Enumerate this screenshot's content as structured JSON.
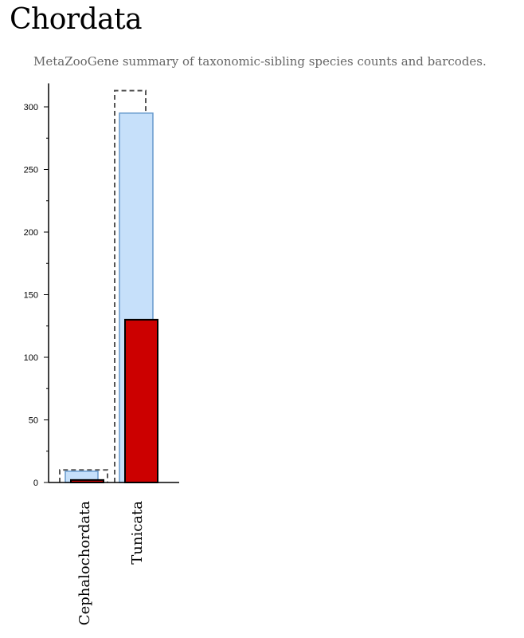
{
  "page": {
    "title": "Chordata",
    "subtitle": "MetaZooGene summary of taxonomic-sibling species counts and barcodes."
  },
  "chart_data": {
    "type": "bar",
    "categories": [
      "Cephalochordata",
      "Tunicata"
    ],
    "series": [
      {
        "key": "outline",
        "values": [
          10,
          313
        ],
        "style": "dashed-outline",
        "color": "#555555"
      },
      {
        "key": "light",
        "values": [
          9,
          295
        ],
        "color": "#c6e0fa",
        "stroke": "#6699cc"
      },
      {
        "key": "dark",
        "values": [
          2,
          130
        ],
        "color": "#cc0000",
        "stroke": "#000000"
      }
    ],
    "ylim": [
      0,
      315
    ],
    "yticks": [
      0,
      50,
      100,
      150,
      200,
      250,
      300
    ],
    "y_minor_step": 25,
    "ytick_labels": [
      "0",
      "50",
      "100",
      "150",
      "200",
      "250",
      "300"
    ],
    "xlabel": "",
    "ylabel": "",
    "grid": false
  }
}
